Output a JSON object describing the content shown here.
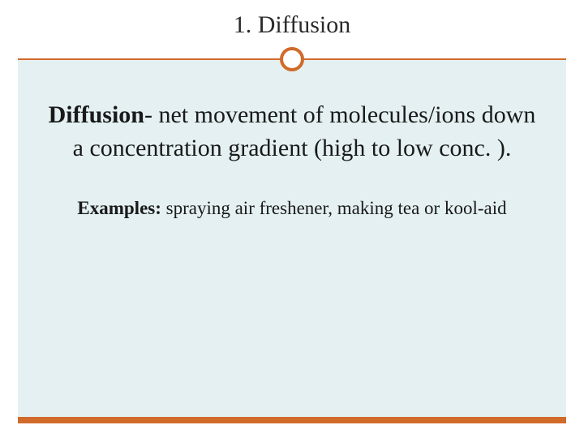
{
  "slide": {
    "title": "1. Diffusion",
    "definition_term": "Diffusion",
    "definition_body": "- net movement of molecules/ions down a concentration gradient (high to low conc. ).",
    "examples_label": "Examples:",
    "examples_body": " spraying air freshener, making tea or kool-aid"
  },
  "styling": {
    "accent_color": "#d16a2a",
    "content_background": "#e4f0f1",
    "page_background": "#ffffff",
    "text_color": "#1a1a1a",
    "title_fontsize": 30,
    "definition_fontsize": 30,
    "examples_fontsize": 23,
    "divider_thickness": 2,
    "bottom_bar_thickness": 8,
    "marker_diameter": 30,
    "marker_border": 4,
    "slide_width": 720,
    "slide_height": 540
  }
}
